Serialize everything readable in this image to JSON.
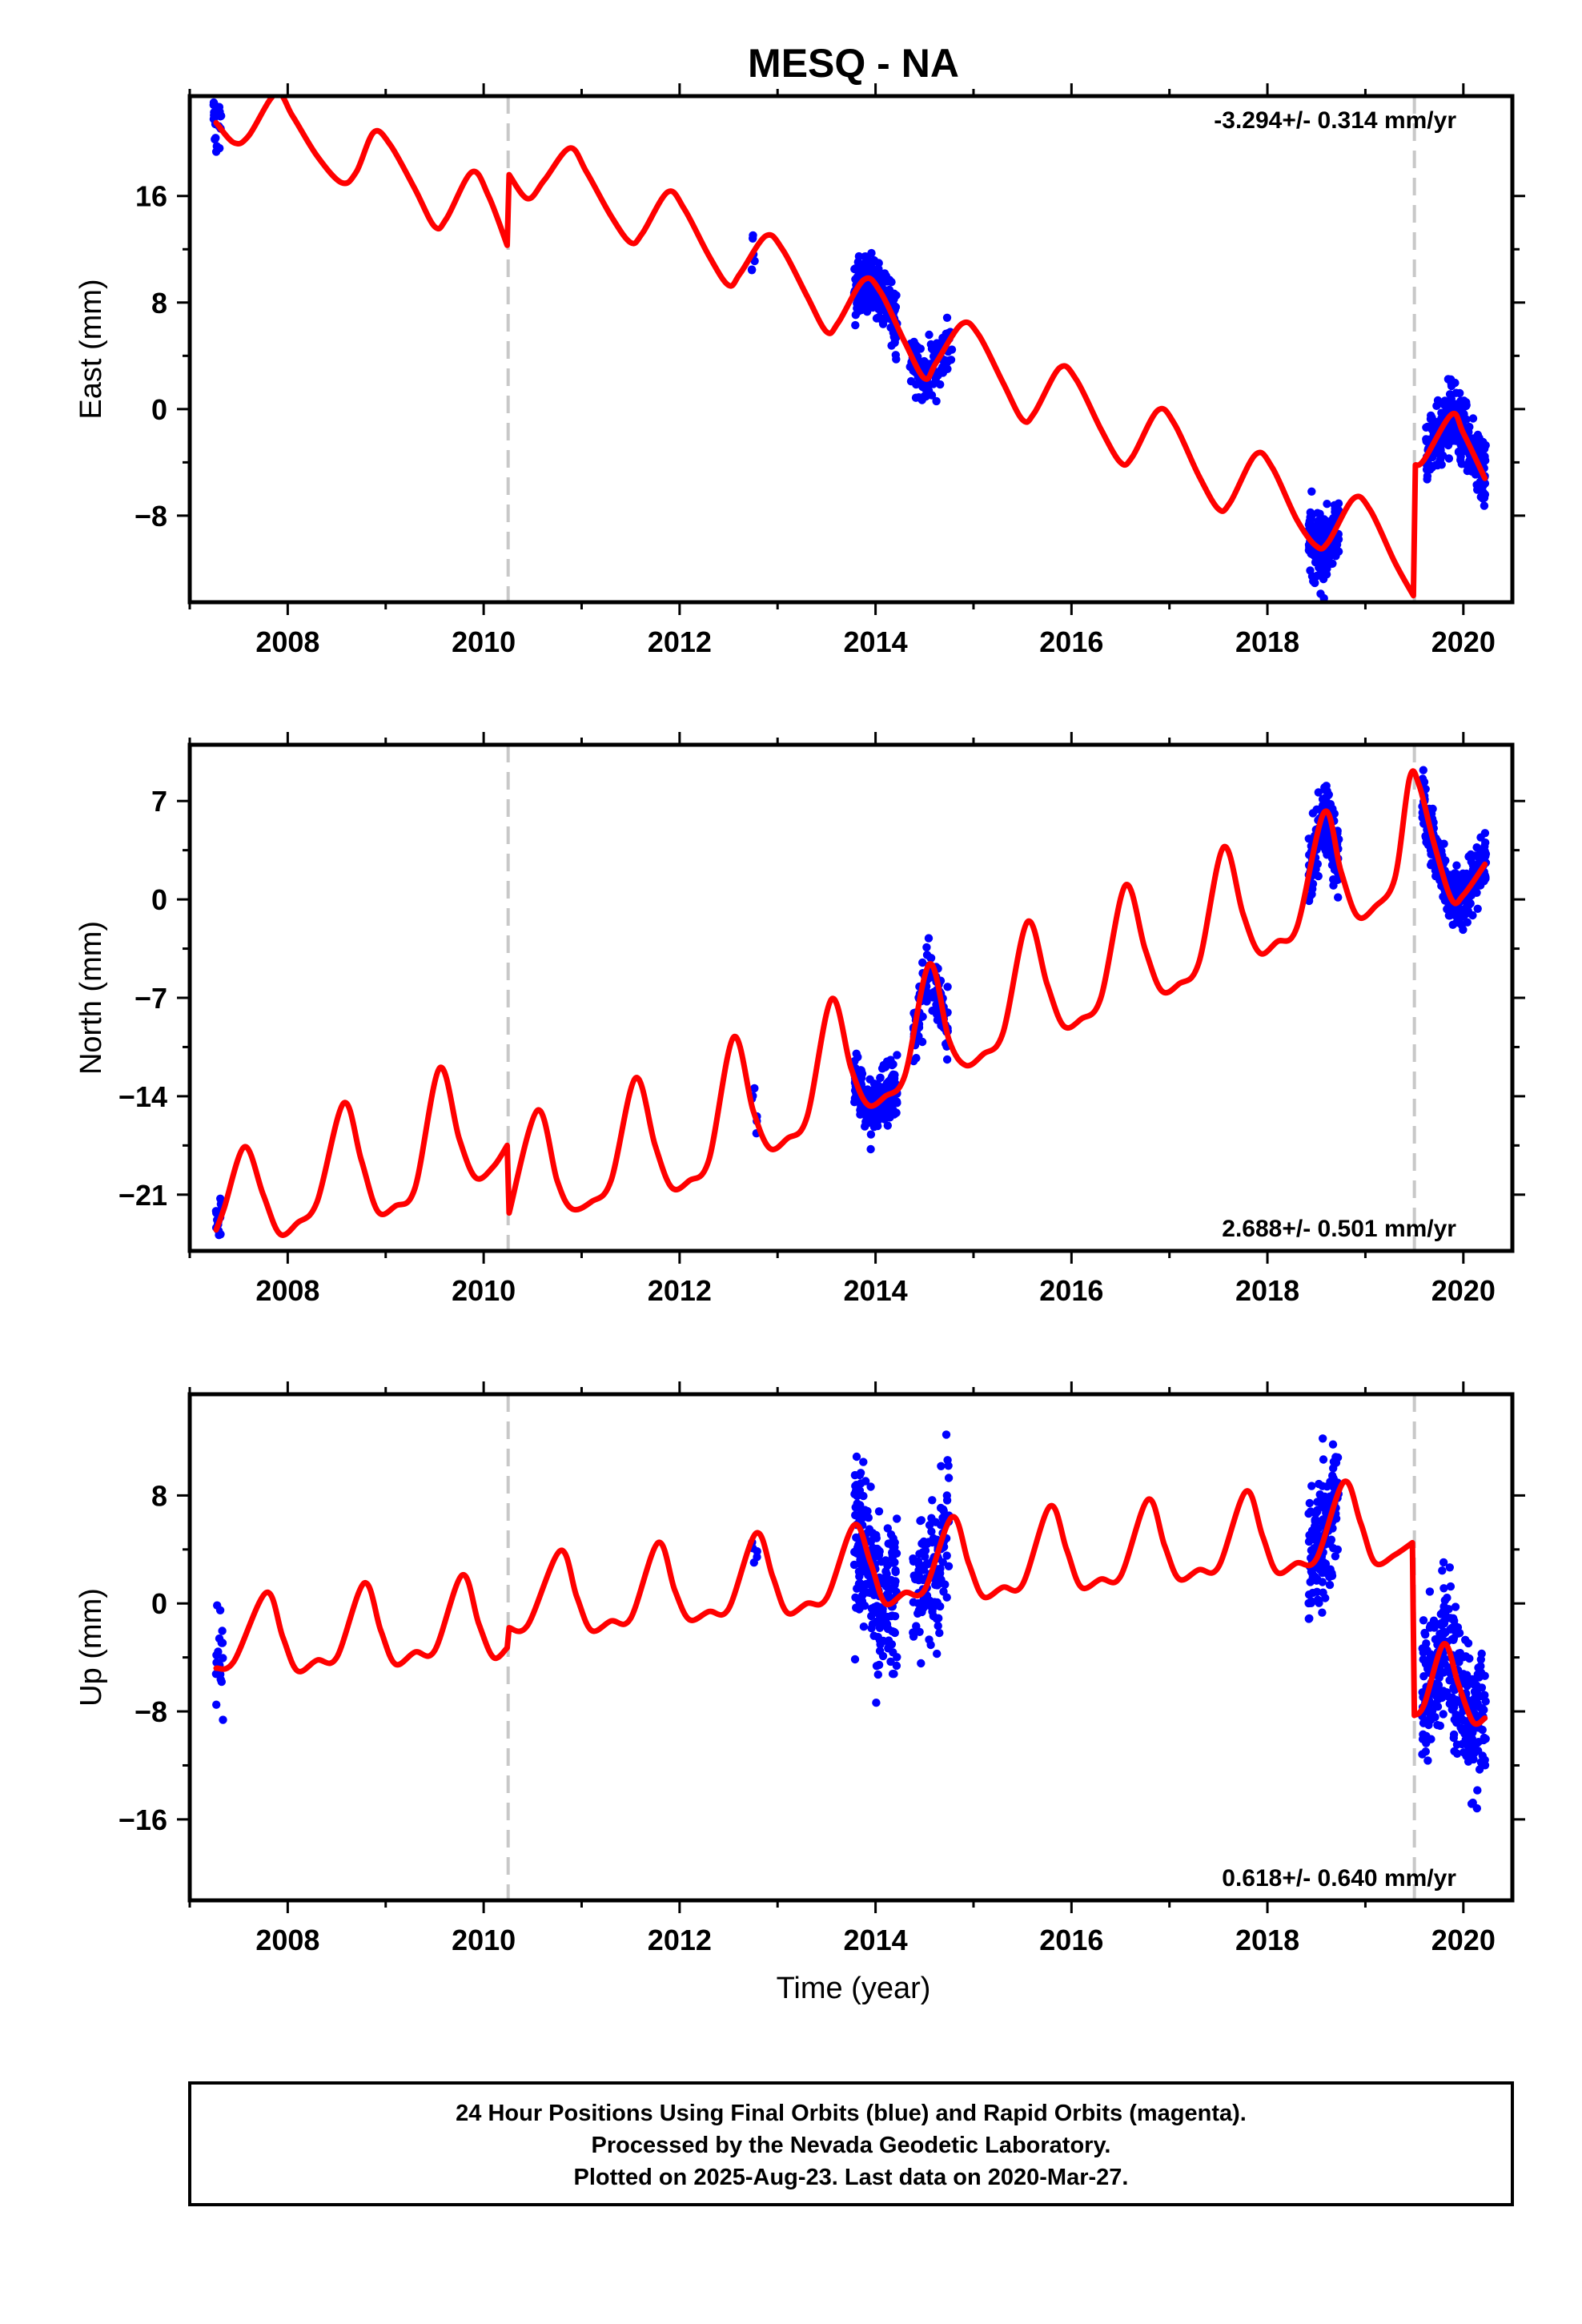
{
  "title": "MESQ - NA",
  "xlabel": "Time (year)",
  "footer": {
    "lines": [
      "24 Hour Positions Using Final Orbits (blue) and Rapid Orbits (magenta).",
      "Processed by the Nevada Geodetic Laboratory.",
      "Plotted on 2025-Aug-23. Last data on 2020-Mar-27."
    ]
  },
  "colors": {
    "data": "#0000ff",
    "model": "#ff0000",
    "break_line": "#c8c8c8",
    "frame": "#000000"
  },
  "chart_data": [
    {
      "type": "scatter",
      "ylabel": "East (mm)",
      "rate_label": "-3.294+/- 0.314 mm/yr",
      "xlim": [
        2007.0,
        2020.5
      ],
      "ylim": [
        -14.5,
        23.5
      ],
      "x_ticks": [
        2008,
        2010,
        2012,
        2014,
        2016,
        2018,
        2020
      ],
      "x_tick_labels": [
        "2008",
        "2010",
        "2012",
        "2014",
        "2016",
        "2018",
        "2020"
      ],
      "y_ticks": [
        -8,
        0,
        8,
        16
      ],
      "y_tick_labels": [
        "−8",
        "0",
        "8",
        "16"
      ],
      "breaks": [
        2010.25,
        2019.5
      ],
      "model": {
        "points": [
          [
            2007.27,
            21.5
          ],
          [
            2007.45,
            20.0
          ],
          [
            2007.6,
            20.5
          ],
          [
            2007.88,
            23.7
          ],
          [
            2008.05,
            22.0
          ],
          [
            2008.3,
            19.0
          ],
          [
            2008.55,
            17.0
          ],
          [
            2008.7,
            17.8
          ],
          [
            2008.88,
            20.8
          ],
          [
            2009.05,
            19.8
          ],
          [
            2009.3,
            16.5
          ],
          [
            2009.5,
            13.7
          ],
          [
            2009.62,
            14.3
          ],
          [
            2009.88,
            17.8
          ],
          [
            2010.05,
            16.0
          ],
          [
            2010.24,
            12.3
          ],
          [
            2010.26,
            17.6
          ],
          [
            2010.45,
            15.8
          ],
          [
            2010.62,
            17.2
          ],
          [
            2010.88,
            19.6
          ],
          [
            2011.05,
            17.8
          ],
          [
            2011.3,
            14.5
          ],
          [
            2011.5,
            12.5
          ],
          [
            2011.62,
            13.2
          ],
          [
            2011.88,
            16.3
          ],
          [
            2012.05,
            15.0
          ],
          [
            2012.3,
            11.5
          ],
          [
            2012.5,
            9.3
          ],
          [
            2012.62,
            10.2
          ],
          [
            2012.88,
            13.0
          ],
          [
            2013.05,
            12.0
          ],
          [
            2013.3,
            8.5
          ],
          [
            2013.5,
            5.8
          ],
          [
            2013.62,
            6.5
          ],
          [
            2013.88,
            9.7
          ],
          [
            2014.05,
            8.8
          ],
          [
            2014.3,
            5.0
          ],
          [
            2014.5,
            2.3
          ],
          [
            2014.62,
            3.5
          ],
          [
            2014.88,
            6.4
          ],
          [
            2015.05,
            5.6
          ],
          [
            2015.3,
            2.0
          ],
          [
            2015.5,
            -0.8
          ],
          [
            2015.62,
            -0.3
          ],
          [
            2015.88,
            3.1
          ],
          [
            2016.05,
            2.2
          ],
          [
            2016.3,
            -1.5
          ],
          [
            2016.5,
            -4.0
          ],
          [
            2016.62,
            -3.6
          ],
          [
            2016.88,
            -0.1
          ],
          [
            2017.05,
            -1.1
          ],
          [
            2017.3,
            -5.0
          ],
          [
            2017.5,
            -7.5
          ],
          [
            2017.62,
            -7.0
          ],
          [
            2017.88,
            -3.4
          ],
          [
            2018.05,
            -4.4
          ],
          [
            2018.3,
            -8.3
          ],
          [
            2018.5,
            -10.3
          ],
          [
            2018.62,
            -10.0
          ],
          [
            2018.88,
            -6.7
          ],
          [
            2019.05,
            -7.6
          ],
          [
            2019.3,
            -11.5
          ],
          [
            2019.49,
            -14.0
          ],
          [
            2019.51,
            -4.2
          ],
          [
            2019.6,
            -3.8
          ],
          [
            2019.88,
            -0.4
          ],
          [
            2020.0,
            -1.8
          ],
          [
            2020.22,
            -5.2
          ]
        ]
      },
      "observations": {
        "clusters": [
          {
            "t0": 2007.24,
            "t1": 2007.34,
            "n": 18,
            "level": "model",
            "spread": 1.2,
            "seed": 11
          },
          {
            "t0": 2012.73,
            "t1": 2012.8,
            "n": 6,
            "level": "model",
            "spread": 0.9,
            "seed": 12
          },
          {
            "t0": 2013.78,
            "t1": 2014.22,
            "n": 240,
            "level": "model",
            "spread": 1.1,
            "seed": 13
          },
          {
            "t0": 2014.35,
            "t1": 2014.78,
            "n": 120,
            "level": "model",
            "spread": 1.0,
            "seed": 14
          },
          {
            "t0": 2018.42,
            "t1": 2018.73,
            "n": 180,
            "level": "model",
            "spread": 1.3,
            "seed": 15
          },
          {
            "t0": 2019.62,
            "t1": 2020.23,
            "n": 320,
            "level": "model",
            "spread": 1.2,
            "seed": 16
          }
        ]
      }
    },
    {
      "type": "scatter",
      "ylabel": "North (mm)",
      "rate_label": "2.688+/- 0.501 mm/yr",
      "xlim": [
        2007.0,
        2020.5
      ],
      "ylim": [
        -25.0,
        11.0
      ],
      "x_ticks": [
        2008,
        2010,
        2012,
        2014,
        2016,
        2018,
        2020
      ],
      "x_tick_labels": [
        "2008",
        "2010",
        "2012",
        "2014",
        "2016",
        "2018",
        "2020"
      ],
      "y_ticks": [
        -21,
        -14,
        -7,
        0,
        7
      ],
      "y_tick_labels": [
        "−21",
        "−14",
        "−7",
        "0",
        "7"
      ],
      "breaks": [
        2010.25,
        2019.5
      ],
      "model": {
        "points": [
          [
            2007.27,
            -23.5
          ],
          [
            2007.35,
            -22.0
          ],
          [
            2007.56,
            -17.6
          ],
          [
            2007.75,
            -21.0
          ],
          [
            2007.92,
            -23.8
          ],
          [
            2008.1,
            -23.0
          ],
          [
            2008.3,
            -21.5
          ],
          [
            2008.57,
            -14.5
          ],
          [
            2008.75,
            -18.5
          ],
          [
            2008.92,
            -22.2
          ],
          [
            2009.1,
            -21.8
          ],
          [
            2009.3,
            -20.5
          ],
          [
            2009.55,
            -12.0
          ],
          [
            2009.75,
            -17.0
          ],
          [
            2009.92,
            -19.8
          ],
          [
            2010.1,
            -19.0
          ],
          [
            2010.24,
            -17.5
          ],
          [
            2010.26,
            -22.3
          ],
          [
            2010.55,
            -15.0
          ],
          [
            2010.75,
            -20.0
          ],
          [
            2010.9,
            -22.0
          ],
          [
            2011.1,
            -21.5
          ],
          [
            2011.3,
            -20.0
          ],
          [
            2011.55,
            -12.7
          ],
          [
            2011.75,
            -17.5
          ],
          [
            2011.92,
            -20.5
          ],
          [
            2012.1,
            -20.0
          ],
          [
            2012.3,
            -18.5
          ],
          [
            2012.55,
            -9.8
          ],
          [
            2012.75,
            -15.0
          ],
          [
            2012.92,
            -17.7
          ],
          [
            2013.1,
            -17.0
          ],
          [
            2013.3,
            -15.5
          ],
          [
            2013.55,
            -7.1
          ],
          [
            2013.75,
            -12.0
          ],
          [
            2013.92,
            -14.6
          ],
          [
            2014.1,
            -14.0
          ],
          [
            2014.3,
            -12.5
          ],
          [
            2014.55,
            -4.6
          ],
          [
            2014.75,
            -10.0
          ],
          [
            2014.92,
            -11.8
          ],
          [
            2015.1,
            -11.0
          ],
          [
            2015.3,
            -9.5
          ],
          [
            2015.55,
            -1.6
          ],
          [
            2015.75,
            -6.0
          ],
          [
            2015.92,
            -9.0
          ],
          [
            2016.1,
            -8.5
          ],
          [
            2016.3,
            -7.0
          ],
          [
            2016.55,
            1.0
          ],
          [
            2016.75,
            -3.5
          ],
          [
            2016.92,
            -6.5
          ],
          [
            2017.1,
            -6.0
          ],
          [
            2017.3,
            -4.5
          ],
          [
            2017.55,
            3.7
          ],
          [
            2017.75,
            -1.0
          ],
          [
            2017.92,
            -3.8
          ],
          [
            2018.1,
            -3.0
          ],
          [
            2018.3,
            -2.0
          ],
          [
            2018.58,
            6.2
          ],
          [
            2018.75,
            2.0
          ],
          [
            2018.92,
            -1.2
          ],
          [
            2019.1,
            -0.5
          ],
          [
            2019.3,
            1.5
          ],
          [
            2019.45,
            8.6
          ],
          [
            2019.55,
            8.1
          ],
          [
            2019.7,
            4.0
          ],
          [
            2019.88,
            0.0
          ],
          [
            2020.0,
            0.3
          ],
          [
            2020.22,
            2.5
          ]
        ]
      },
      "observations": {
        "clusters": [
          {
            "t0": 2007.26,
            "t1": 2007.34,
            "n": 16,
            "level": "model",
            "spread": 0.9,
            "seed": 21
          },
          {
            "t0": 2012.73,
            "t1": 2012.8,
            "n": 6,
            "level": "model",
            "spread": 0.8,
            "seed": 22
          },
          {
            "t0": 2013.78,
            "t1": 2014.22,
            "n": 230,
            "level": "model",
            "spread": 0.9,
            "seed": 23
          },
          {
            "t0": 2014.38,
            "t1": 2014.75,
            "n": 130,
            "level": "model",
            "spread": 1.1,
            "seed": 24
          },
          {
            "t0": 2018.42,
            "t1": 2018.73,
            "n": 170,
            "level": "model",
            "spread": 1.2,
            "seed": 25
          },
          {
            "t0": 2019.58,
            "t1": 2020.23,
            "n": 320,
            "level": "model",
            "spread": 1.0,
            "seed": 26
          }
        ]
      }
    },
    {
      "type": "scatter",
      "ylabel": "Up (mm)",
      "rate_label": "0.618+/- 0.640 mm/yr",
      "xlim": [
        2007.0,
        2020.5
      ],
      "ylim": [
        -22.0,
        15.5
      ],
      "x_ticks": [
        2008,
        2010,
        2012,
        2014,
        2016,
        2018,
        2020
      ],
      "x_tick_labels": [
        "2008",
        "2010",
        "2012",
        "2014",
        "2016",
        "2018",
        "2020"
      ],
      "y_ticks": [
        -16,
        -8,
        0,
        8
      ],
      "y_tick_labels": [
        "−16",
        "−8",
        "0",
        "8"
      ],
      "breaks": [
        2010.25,
        2019.5
      ],
      "model": {
        "points": [
          [
            2007.27,
            -4.8
          ],
          [
            2007.45,
            -4.3
          ],
          [
            2007.78,
            0.8
          ],
          [
            2007.95,
            -2.5
          ],
          [
            2008.1,
            -5.0
          ],
          [
            2008.3,
            -4.2
          ],
          [
            2008.5,
            -4.0
          ],
          [
            2008.78,
            1.5
          ],
          [
            2008.95,
            -2.0
          ],
          [
            2009.1,
            -4.5
          ],
          [
            2009.3,
            -3.6
          ],
          [
            2009.5,
            -3.5
          ],
          [
            2009.78,
            2.1
          ],
          [
            2009.95,
            -1.5
          ],
          [
            2010.1,
            -4.0
          ],
          [
            2010.24,
            -3.3
          ],
          [
            2010.26,
            -1.8
          ],
          [
            2010.45,
            -1.6
          ],
          [
            2010.78,
            3.9
          ],
          [
            2010.95,
            0.5
          ],
          [
            2011.1,
            -2.0
          ],
          [
            2011.3,
            -1.3
          ],
          [
            2011.5,
            -1.1
          ],
          [
            2011.78,
            4.5
          ],
          [
            2011.95,
            1.0
          ],
          [
            2012.1,
            -1.2
          ],
          [
            2012.3,
            -0.6
          ],
          [
            2012.5,
            -0.4
          ],
          [
            2012.78,
            5.2
          ],
          [
            2012.95,
            2.0
          ],
          [
            2013.1,
            -0.7
          ],
          [
            2013.3,
            0.0
          ],
          [
            2013.5,
            0.4
          ],
          [
            2013.78,
            5.8
          ],
          [
            2013.95,
            3.0
          ],
          [
            2014.1,
            0.0
          ],
          [
            2014.3,
            0.8
          ],
          [
            2014.5,
            1.0
          ],
          [
            2014.78,
            6.4
          ],
          [
            2014.95,
            3.0
          ],
          [
            2015.1,
            0.5
          ],
          [
            2015.3,
            1.2
          ],
          [
            2015.5,
            1.4
          ],
          [
            2015.78,
            7.2
          ],
          [
            2015.95,
            4.0
          ],
          [
            2016.1,
            1.2
          ],
          [
            2016.3,
            1.8
          ],
          [
            2016.5,
            2.0
          ],
          [
            2016.78,
            7.7
          ],
          [
            2016.95,
            4.3
          ],
          [
            2017.1,
            1.8
          ],
          [
            2017.3,
            2.5
          ],
          [
            2017.5,
            2.7
          ],
          [
            2017.78,
            8.3
          ],
          [
            2017.95,
            5.0
          ],
          [
            2018.1,
            2.3
          ],
          [
            2018.3,
            3.0
          ],
          [
            2018.5,
            3.3
          ],
          [
            2018.78,
            9.0
          ],
          [
            2018.95,
            6.0
          ],
          [
            2019.1,
            3.0
          ],
          [
            2019.3,
            3.6
          ],
          [
            2019.48,
            4.5
          ],
          [
            2019.5,
            -8.3
          ],
          [
            2019.6,
            -7.5
          ],
          [
            2019.8,
            -3.0
          ],
          [
            2019.95,
            -6.0
          ],
          [
            2020.1,
            -8.8
          ],
          [
            2020.22,
            -8.5
          ]
        ]
      },
      "observations": {
        "clusters": [
          {
            "t0": 2007.26,
            "t1": 2007.34,
            "n": 18,
            "level": "model",
            "spread": 2.2,
            "seed": 31
          },
          {
            "t0": 2012.73,
            "t1": 2012.8,
            "n": 5,
            "level": "model",
            "spread": 2.0,
            "seed": 32
          },
          {
            "t0": 2013.78,
            "t1": 2014.22,
            "n": 220,
            "level": "model",
            "spread": 3.0,
            "seed": 33
          },
          {
            "t0": 2014.38,
            "t1": 2014.75,
            "n": 130,
            "level": "model",
            "spread": 3.0,
            "seed": 34
          },
          {
            "t0": 2018.42,
            "t1": 2018.73,
            "n": 170,
            "level": "model",
            "spread": 2.8,
            "seed": 35
          },
          {
            "t0": 2019.58,
            "t1": 2020.23,
            "n": 330,
            "level": "model",
            "spread": 2.6,
            "seed": 36
          }
        ]
      }
    }
  ]
}
